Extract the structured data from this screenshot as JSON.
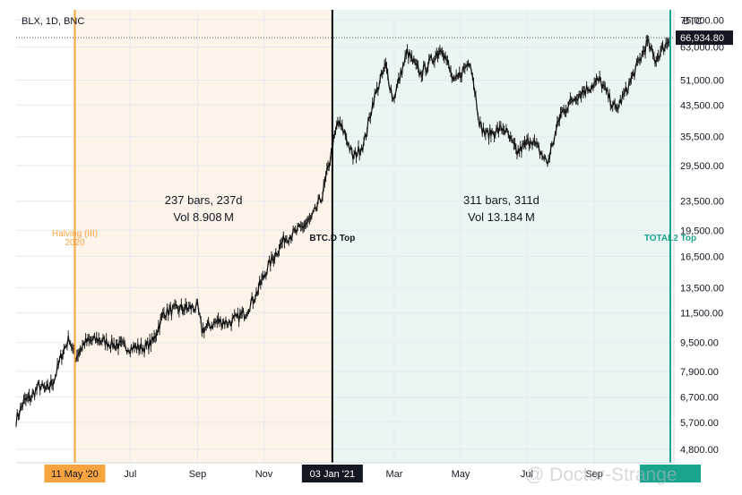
{
  "symbol": "BLX, 1D, BNC",
  "currency": "BTC",
  "price_label": "66,934.80",
  "watermark": "@ Doctor-Strange",
  "chart_data": {
    "type": "line",
    "title": "BLX, 1D, BNC",
    "y_scale": "log",
    "ylim": [
      4400,
      80000
    ],
    "xlim": [
      "2020-03-18",
      "2021-11-10"
    ],
    "y_ticks": [
      75000,
      63000,
      51000,
      43500,
      35500,
      29500,
      23500,
      19500,
      16500,
      13500,
      11500,
      9500,
      7900,
      6700,
      5700,
      4800
    ],
    "y_tick_labels": [
      "75,000.00",
      "63,000.00",
      "51,000.00",
      "43,500.00",
      "35,500.00",
      "29,500.00",
      "23,500.00",
      "19,500.00",
      "16,500.00",
      "13,500.00",
      "11,500.00",
      "9,500.00",
      "7,900.00",
      "6,700.00",
      "5,700.00",
      "4,800.00"
    ],
    "x_ticks": [
      {
        "date": "2020-05-11",
        "label": "11 May '20",
        "highlight": "orange"
      },
      {
        "date": "2020-07-01",
        "label": "Jul"
      },
      {
        "date": "2020-09-01",
        "label": "Sep"
      },
      {
        "date": "2020-11-01",
        "label": "Nov"
      },
      {
        "date": "2021-01-03",
        "label": "03 Jan '21",
        "highlight": "black"
      },
      {
        "date": "2021-03-01",
        "label": "Mar"
      },
      {
        "date": "2021-05-01",
        "label": "May"
      },
      {
        "date": "2021-07-01",
        "label": "Jul"
      },
      {
        "date": "2021-09-01",
        "label": "Sep"
      },
      {
        "date": "2021-11-10",
        "label": "",
        "highlight": "teal"
      }
    ],
    "series": [
      {
        "dates": [
          "2020-03-18",
          "2020-03-25",
          "2020-04-01",
          "2020-04-08",
          "2020-04-15",
          "2020-04-22",
          "2020-04-29",
          "2020-05-06",
          "2020-05-11",
          "2020-05-20",
          "2020-06-01",
          "2020-06-15",
          "2020-07-01",
          "2020-07-15",
          "2020-07-22",
          "2020-08-01",
          "2020-08-15",
          "2020-09-01",
          "2020-09-05",
          "2020-09-20",
          "2020-10-01",
          "2020-10-15",
          "2020-10-25",
          "2020-11-05",
          "2020-11-20",
          "2020-12-01",
          "2020-12-15",
          "2020-12-25",
          "2021-01-03",
          "2021-01-08",
          "2021-01-15",
          "2021-01-22",
          "2021-02-01",
          "2021-02-10",
          "2021-02-21",
          "2021-02-28",
          "2021-03-13",
          "2021-03-25",
          "2021-04-14",
          "2021-04-25",
          "2021-05-10",
          "2021-05-19",
          "2021-05-25",
          "2021-06-10",
          "2021-06-22",
          "2021-07-05",
          "2021-07-20",
          "2021-08-01",
          "2021-08-15",
          "2021-09-06",
          "2021-09-21",
          "2021-10-01",
          "2021-10-15",
          "2021-10-20",
          "2021-10-27",
          "2021-11-10"
        ],
        "values": [
          5800,
          6500,
          6700,
          7200,
          7000,
          7500,
          8800,
          9800,
          8600,
          9500,
          9700,
          9400,
          9200,
          9200,
          9600,
          11500,
          11800,
          11900,
          10300,
          10900,
          10800,
          11500,
          13000,
          15500,
          18500,
          19300,
          21000,
          24500,
          33000,
          39000,
          36000,
          31000,
          34000,
          45000,
          56000,
          45000,
          61000,
          53000,
          63000,
          50000,
          58000,
          38000,
          36000,
          37500,
          32000,
          35000,
          30000,
          41000,
          46000,
          51000,
          42000,
          48000,
          60000,
          65000,
          58000,
          66934.8
        ]
      }
    ],
    "annotations": [
      {
        "type": "vline",
        "date": "2020-05-11",
        "label": "Halving (III)\n2020",
        "color": "#f7a440"
      },
      {
        "type": "vline",
        "date": "2021-01-03",
        "label": "BTC.D Top",
        "color": "#000000"
      },
      {
        "type": "vline",
        "date": "2021-11-10",
        "label": "TOTAL2 Top",
        "color": "#1aa58e"
      },
      {
        "type": "range",
        "from": "2020-05-11",
        "to": "2021-01-03",
        "text1": "237 bars, 237d",
        "text2": "Vol 8.908 M",
        "fill": "#fdf3e9"
      },
      {
        "type": "range",
        "from": "2021-01-03",
        "to": "2021-11-10",
        "text1": "311 bars, 311d",
        "text2": "Vol 13.184 M",
        "fill": "#eaf6f4"
      }
    ],
    "last_price": 66934.8,
    "grid": true
  }
}
